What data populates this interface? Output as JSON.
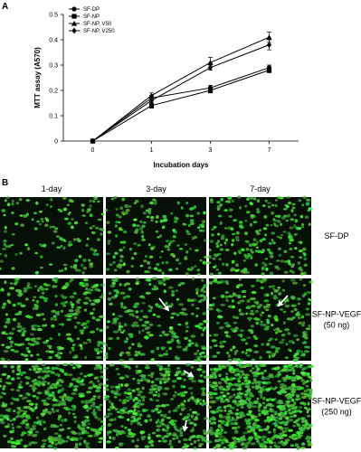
{
  "chart_data": {
    "type": "line",
    "panel": "A",
    "x_label": "Incubation days",
    "y_label": "MTT assay (A570)",
    "categories": [
      "0",
      "1",
      "3",
      "7"
    ],
    "ylim": [
      0,
      0.5
    ],
    "yticks": [
      0,
      0.1,
      0.2,
      0.3,
      0.4,
      0.5
    ],
    "legend": "upper left",
    "series": [
      {
        "name": "SF-DP",
        "color": "#000000",
        "marker": "circle",
        "values": [
          0,
          0.17,
          0.21,
          0.29
        ],
        "errors": [
          0,
          0.01,
          0.01,
          0.01
        ]
      },
      {
        "name": "SF-NP",
        "color": "#000000",
        "marker": "square",
        "values": [
          0,
          0.14,
          0.2,
          0.28
        ],
        "errors": [
          0,
          0.01,
          0.01,
          0.01
        ]
      },
      {
        "name": "SF-NP, V50",
        "color": "#000000",
        "marker": "triangle",
        "values": [
          0,
          0.18,
          0.31,
          0.41
        ],
        "errors": [
          0,
          0.01,
          0.02,
          0.02
        ]
      },
      {
        "name": "SF-NP, V250",
        "color": "#000000",
        "marker": "diamond",
        "values": [
          0,
          0.16,
          0.29,
          0.38
        ],
        "errors": [
          0,
          0.01,
          0.01,
          0.02
        ]
      }
    ]
  },
  "panel_b": {
    "panel": "B",
    "columns": [
      "1-day",
      "3-day",
      "7-day"
    ],
    "rows": [
      [
        "SF-DP"
      ],
      [
        "SF-NP-VEGF",
        "(50 ng)"
      ],
      [
        "SF-NP-VEGF",
        "(250 ng)"
      ]
    ]
  }
}
